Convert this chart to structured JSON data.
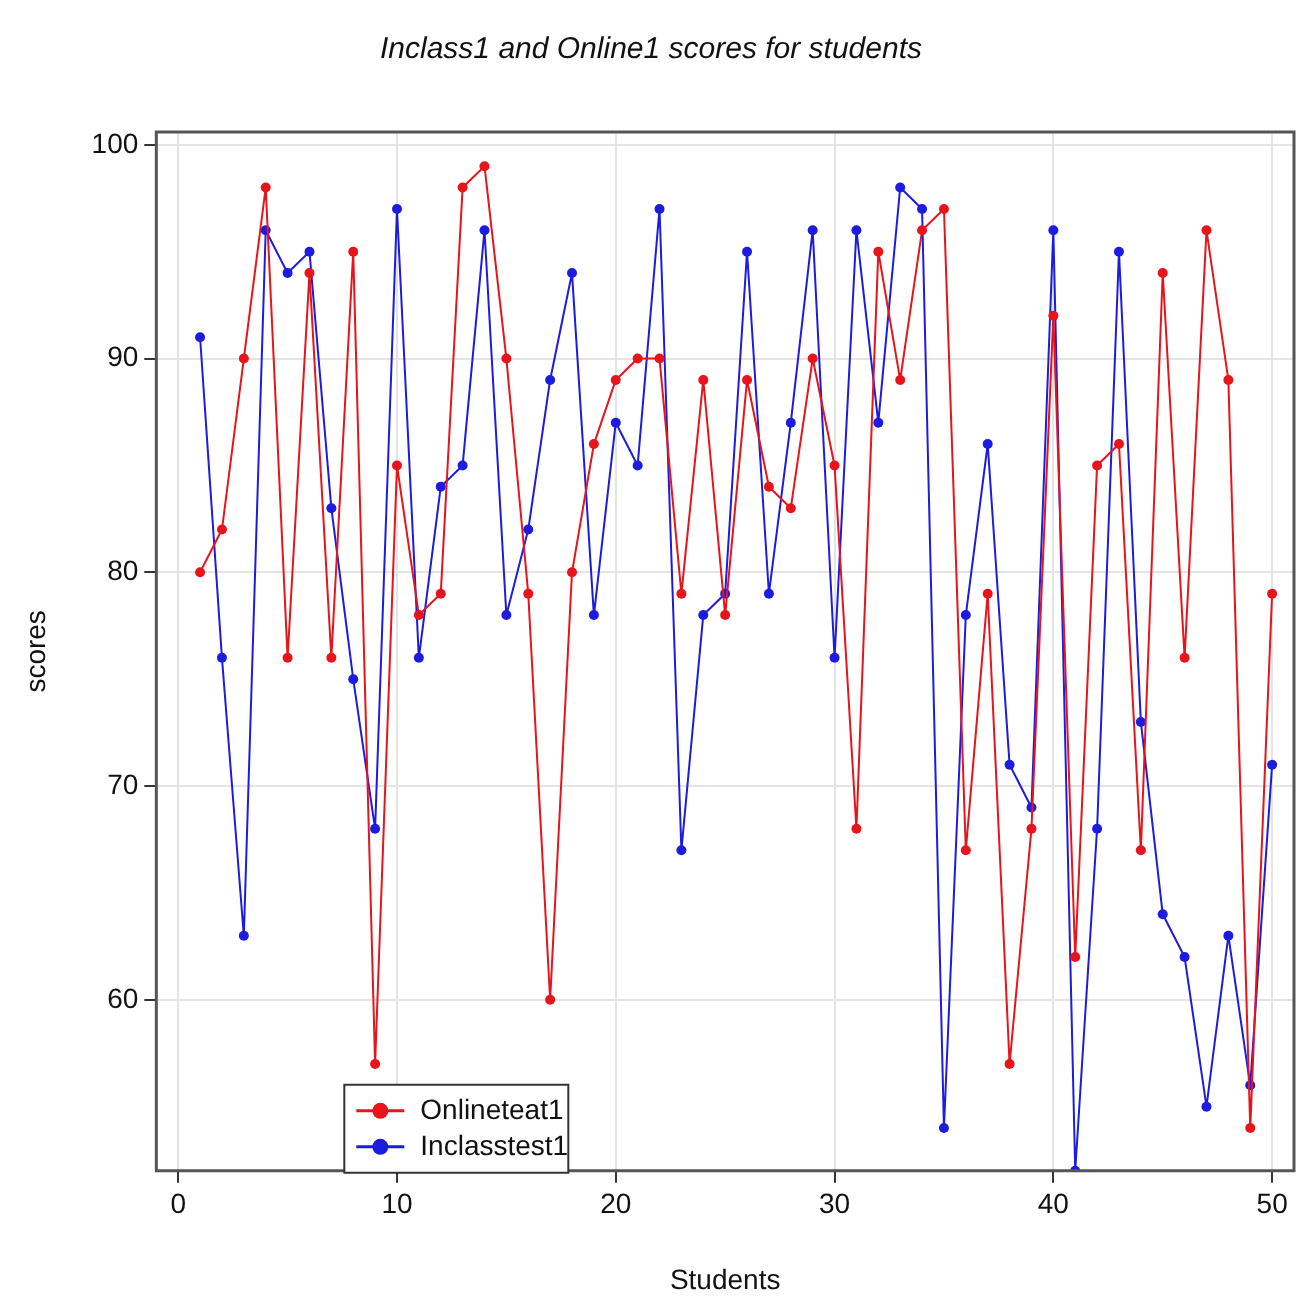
{
  "chart_data": {
    "type": "line",
    "title": "Inclass1 and Online1 scores for students",
    "xlabel": "Students",
    "ylabel": "scores",
    "x": [
      1,
      2,
      3,
      4,
      5,
      6,
      7,
      8,
      9,
      10,
      11,
      12,
      13,
      14,
      15,
      16,
      17,
      18,
      19,
      20,
      21,
      22,
      23,
      24,
      25,
      26,
      27,
      28,
      29,
      30,
      31,
      32,
      33,
      34,
      35,
      36,
      37,
      38,
      39,
      40,
      41,
      42,
      43,
      44,
      45,
      46,
      47,
      48,
      49,
      50
    ],
    "series": [
      {
        "name": "Onlineteat1",
        "color": "#e8141c",
        "values": [
          80,
          82,
          90,
          98,
          76,
          94,
          76,
          95,
          57,
          85,
          78,
          79,
          98,
          99,
          90,
          79,
          60,
          80,
          86,
          89,
          90,
          90,
          79,
          89,
          78,
          89,
          84,
          83,
          90,
          85,
          68,
          95,
          89,
          96,
          97,
          67,
          79,
          57,
          68,
          92,
          62,
          85,
          86,
          67,
          94,
          76,
          96,
          89,
          54,
          79
        ]
      },
      {
        "name": "Inclasstest1",
        "color": "#1c1ce0",
        "values": [
          91,
          76,
          63,
          96,
          94,
          95,
          83,
          75,
          68,
          97,
          76,
          84,
          85,
          96,
          78,
          82,
          89,
          94,
          78,
          87,
          85,
          97,
          67,
          78,
          79,
          95,
          79,
          87,
          96,
          76,
          96,
          87,
          98,
          97,
          54,
          78,
          86,
          71,
          69,
          96,
          52,
          68,
          95,
          73,
          64,
          62,
          55,
          63,
          56,
          71
        ]
      }
    ],
    "xlim": [
      -1,
      51
    ],
    "ylim": [
      52,
      100.6
    ],
    "xticks": [
      0,
      10,
      20,
      30,
      40,
      50
    ],
    "yticks": [
      60,
      70,
      80,
      90,
      100
    ],
    "grid": true,
    "legend": "bottom left",
    "marker": "circle",
    "line_style": "solid"
  }
}
